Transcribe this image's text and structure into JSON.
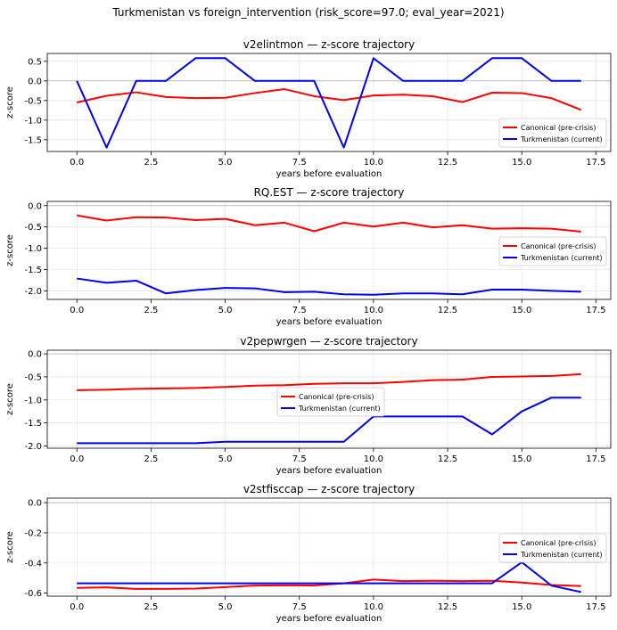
{
  "figure": {
    "suptitle": "Turkmenistan vs foreign_intervention (risk_score=97.0; eval_year=2021)"
  },
  "colors": {
    "canonical": "#ff0000",
    "country": "#0000ee",
    "grid": "#e6e6e6",
    "zero_line": "#bfbfbf"
  },
  "chart_data": [
    {
      "type": "line",
      "title": "v2elintmon — z-score trajectory",
      "xlabel": "years before evaluation",
      "ylabel": "z-score",
      "xlim": [
        -1,
        18
      ],
      "ylim": [
        -1.8,
        0.7
      ],
      "xticks": [
        0.0,
        2.5,
        5.0,
        7.5,
        10.0,
        12.5,
        15.0,
        17.5
      ],
      "xtick_labels": [
        "0.0",
        "2.5",
        "5.0",
        "7.5",
        "10.0",
        "12.5",
        "15.0",
        "17.5"
      ],
      "yticks": [
        0.5,
        0.0,
        -0.5,
        -1.0,
        -1.5
      ],
      "ytick_labels": [
        "0.5",
        "0.0",
        "-0.5",
        "-1.0",
        "-1.5"
      ],
      "grid": true,
      "legend_position": "lower-right",
      "x": [
        0,
        1,
        2,
        3,
        4,
        5,
        6,
        7,
        8,
        9,
        10,
        11,
        12,
        13,
        14,
        15,
        16,
        17
      ],
      "series": [
        {
          "name": "Canonical (pre-crisis)",
          "color_key": "canonical",
          "values": [
            -0.55,
            -0.38,
            -0.29,
            -0.41,
            -0.44,
            -0.43,
            -0.31,
            -0.21,
            -0.39,
            -0.49,
            -0.37,
            -0.35,
            -0.39,
            -0.54,
            -0.3,
            -0.31,
            -0.44,
            -0.74
          ]
        },
        {
          "name": "Turkmenistan (current)",
          "color_key": "country",
          "values": [
            0.0,
            -1.7,
            0.0,
            0.0,
            0.58,
            0.58,
            0.0,
            0.0,
            0.0,
            -1.7,
            0.58,
            0.0,
            0.0,
            0.0,
            0.58,
            0.58,
            0.0,
            0.0
          ]
        }
      ]
    },
    {
      "type": "line",
      "title": "RQ.EST — z-score trajectory",
      "xlabel": "years before evaluation",
      "ylabel": "z-score",
      "xlim": [
        -1,
        18
      ],
      "ylim": [
        -2.2,
        0.1
      ],
      "xticks": [
        0.0,
        2.5,
        5.0,
        7.5,
        10.0,
        12.5,
        15.0,
        17.5
      ],
      "xtick_labels": [
        "0.0",
        "2.5",
        "5.0",
        "7.5",
        "10.0",
        "12.5",
        "15.0",
        "17.5"
      ],
      "yticks": [
        0.0,
        -0.5,
        -1.0,
        -1.5,
        -2.0
      ],
      "ytick_labels": [
        "0.0",
        "-0.5",
        "-1.0",
        "-1.5",
        "-2.0"
      ],
      "grid": true,
      "legend_position": "center-right",
      "x": [
        0,
        1,
        2,
        3,
        4,
        5,
        6,
        7,
        8,
        9,
        10,
        11,
        12,
        13,
        14,
        15,
        16,
        17
      ],
      "series": [
        {
          "name": "Canonical (pre-crisis)",
          "color_key": "canonical",
          "values": [
            -0.23,
            -0.35,
            -0.27,
            -0.28,
            -0.34,
            -0.31,
            -0.46,
            -0.4,
            -0.6,
            -0.4,
            -0.49,
            -0.4,
            -0.51,
            -0.46,
            -0.54,
            -0.53,
            -0.54,
            -0.61
          ]
        },
        {
          "name": "Turkmenistan (current)",
          "color_key": "country",
          "values": [
            -1.71,
            -1.81,
            -1.76,
            -2.06,
            -1.98,
            -1.93,
            -1.94,
            -2.03,
            -2.02,
            -2.08,
            -2.09,
            -2.06,
            -2.06,
            -2.08,
            -1.97,
            -1.97,
            -2.0,
            -2.02
          ]
        }
      ]
    },
    {
      "type": "line",
      "title": "v2pepwrgen — z-score trajectory",
      "xlabel": "years before evaluation",
      "ylabel": "z-score",
      "xlim": [
        -1,
        18
      ],
      "ylim": [
        -2.05,
        0.08
      ],
      "xticks": [
        0.0,
        2.5,
        5.0,
        7.5,
        10.0,
        12.5,
        15.0,
        17.5
      ],
      "xtick_labels": [
        "0.0",
        "2.5",
        "5.0",
        "7.5",
        "10.0",
        "12.5",
        "15.0",
        "17.5"
      ],
      "yticks": [
        0.0,
        -0.5,
        -1.0,
        -1.5,
        -2.0
      ],
      "ytick_labels": [
        "0.0",
        "-0.5",
        "-1.0",
        "-1.5",
        "-2.0"
      ],
      "grid": true,
      "legend_position": "center",
      "x": [
        0,
        1,
        2,
        3,
        4,
        5,
        6,
        7,
        8,
        9,
        10,
        11,
        12,
        13,
        14,
        15,
        16,
        17
      ],
      "series": [
        {
          "name": "Canonical (pre-crisis)",
          "color_key": "canonical",
          "values": [
            -0.79,
            -0.78,
            -0.76,
            -0.75,
            -0.74,
            -0.72,
            -0.69,
            -0.68,
            -0.65,
            -0.64,
            -0.64,
            -0.61,
            -0.57,
            -0.56,
            -0.5,
            -0.49,
            -0.48,
            -0.44
          ]
        },
        {
          "name": "Turkmenistan (current)",
          "color_key": "country",
          "values": [
            -1.94,
            -1.94,
            -1.94,
            -1.94,
            -1.94,
            -1.91,
            -1.91,
            -1.91,
            -1.91,
            -1.91,
            -1.36,
            -1.36,
            -1.36,
            -1.36,
            -1.75,
            -1.25,
            -0.95,
            -0.95
          ]
        }
      ]
    },
    {
      "type": "line",
      "title": "v2stfisccap — z-score trajectory",
      "xlabel": "years before evaluation",
      "ylabel": "z-score",
      "xlim": [
        -1,
        18
      ],
      "ylim": [
        -0.62,
        0.03
      ],
      "xticks": [
        0.0,
        2.5,
        5.0,
        7.5,
        10.0,
        12.5,
        15.0,
        17.5
      ],
      "xtick_labels": [
        "0.0",
        "2.5",
        "5.0",
        "7.5",
        "10.0",
        "12.5",
        "15.0",
        "17.5"
      ],
      "yticks": [
        0.0,
        -0.2,
        -0.4,
        -0.6
      ],
      "ytick_labels": [
        "0.0",
        "-0.2",
        "-0.4",
        "-0.6"
      ],
      "grid": true,
      "legend_position": "center-right",
      "x": [
        0,
        1,
        2,
        3,
        4,
        5,
        6,
        7,
        8,
        9,
        10,
        11,
        12,
        13,
        14,
        15,
        16,
        17
      ],
      "series": [
        {
          "name": "Canonical (pre-crisis)",
          "color_key": "canonical",
          "values": [
            -0.565,
            -0.562,
            -0.572,
            -0.572,
            -0.57,
            -0.56,
            -0.55,
            -0.548,
            -0.549,
            -0.535,
            -0.51,
            -0.52,
            -0.518,
            -0.52,
            -0.518,
            -0.53,
            -0.546,
            -0.553
          ]
        },
        {
          "name": "Turkmenistan (current)",
          "color_key": "country",
          "values": [
            -0.535,
            -0.535,
            -0.535,
            -0.535,
            -0.535,
            -0.535,
            -0.535,
            -0.535,
            -0.535,
            -0.535,
            -0.535,
            -0.535,
            -0.535,
            -0.535,
            -0.535,
            -0.395,
            -0.55,
            -0.593
          ]
        }
      ]
    }
  ]
}
